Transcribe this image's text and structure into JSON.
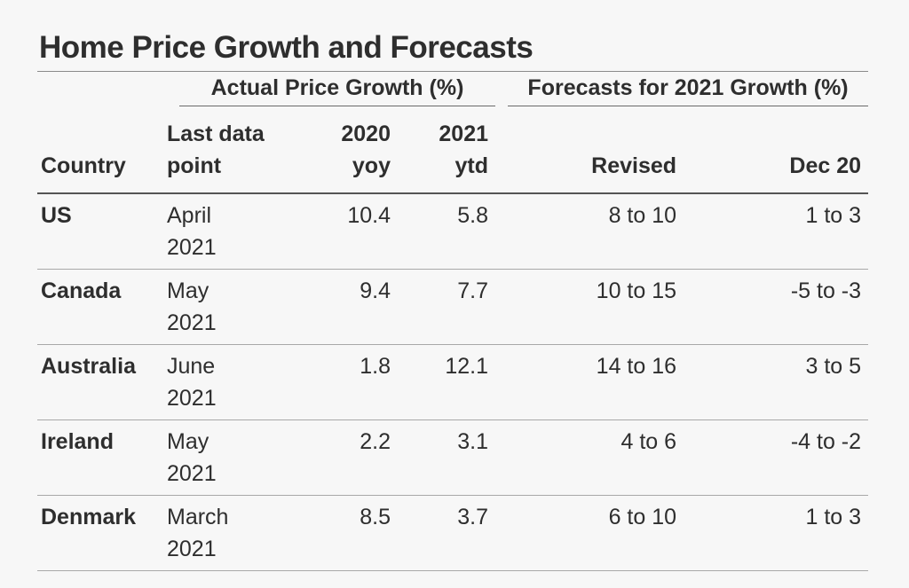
{
  "title": "Home Price Growth and Forecasts",
  "groups": {
    "actual": "Actual Price Growth (%)",
    "forecast": "Forecasts for 2021 Growth (%)"
  },
  "headers": {
    "country": "Country",
    "last_line1": "Last data",
    "last_line2": "point",
    "y2020_line1": "2020",
    "y2020_line2": "yoy",
    "y2021_line1": "2021",
    "y2021_line2": "ytd",
    "revised": "Revised",
    "dec20": "Dec 20"
  },
  "rows": [
    {
      "country": "US",
      "last_month": "April",
      "last_year": "2021",
      "y2020": "10.4",
      "y2021": "5.8",
      "revised": "8 to 10",
      "dec20": "1 to 3"
    },
    {
      "country": "Canada",
      "last_month": "May",
      "last_year": "2021",
      "y2020": "9.4",
      "y2021": "7.7",
      "revised": "10 to 15",
      "dec20": "-5 to -3"
    },
    {
      "country": "Australia",
      "last_month": "June",
      "last_year": "2021",
      "y2020": "1.8",
      "y2021": "12.1",
      "revised": "14 to 16",
      "dec20": "3 to 5"
    },
    {
      "country": "Ireland",
      "last_month": "May",
      "last_year": "2021",
      "y2020": "2.2",
      "y2021": "3.1",
      "revised": "4 to 6",
      "dec20": "-4 to -2"
    },
    {
      "country": "Denmark",
      "last_month": "March",
      "last_year": "2021",
      "y2020": "8.5",
      "y2021": "3.7",
      "revised": "6 to 10",
      "dec20": "1 to 3"
    }
  ],
  "chart_data": {
    "type": "table",
    "title": "Home Price Growth and Forecasts",
    "column_groups": [
      {
        "name": "Actual Price Growth (%)",
        "columns": [
          "Last data point",
          "2020 yoy",
          "2021 ytd"
        ]
      },
      {
        "name": "Forecasts for 2021 Growth (%)",
        "columns": [
          "Revised",
          "Dec 20"
        ]
      }
    ],
    "columns": [
      "Country",
      "Last data point",
      "2020 yoy",
      "2021 ytd",
      "Revised",
      "Dec 20"
    ],
    "rows": [
      [
        "US",
        "April 2021",
        10.4,
        5.8,
        "8 to 10",
        "1 to 3"
      ],
      [
        "Canada",
        "May 2021",
        9.4,
        7.7,
        "10 to 15",
        "-5 to -3"
      ],
      [
        "Australia",
        "June 2021",
        1.8,
        12.1,
        "14 to 16",
        "3 to 5"
      ],
      [
        "Ireland",
        "May 2021",
        2.2,
        3.1,
        "4 to 6",
        "-4 to -2"
      ],
      [
        "Denmark",
        "March 2021",
        8.5,
        3.7,
        "6 to 10",
        "1 to 3"
      ]
    ]
  }
}
